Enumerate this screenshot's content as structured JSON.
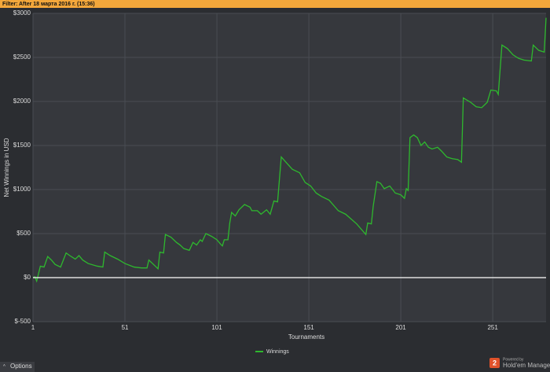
{
  "toolbar": {
    "filter_label": "Filter:",
    "filter_value": "After 18 марта 2016 г. (15:36)"
  },
  "footer": {
    "options": "Options",
    "logo_mark": "2",
    "powered_by": "Powered by",
    "brand": "Hold'em Manager"
  },
  "chart_data": {
    "type": "line",
    "xlabel": "Tournaments",
    "ylabel": "Net Winnings in USD",
    "x": [
      1,
      2,
      3,
      5,
      7,
      9,
      11,
      13,
      16,
      19,
      21,
      24,
      26,
      28,
      31,
      36,
      39,
      40,
      43,
      47,
      51,
      56,
      60,
      63,
      64,
      66,
      69,
      70,
      72,
      73,
      76,
      79,
      81,
      83,
      86,
      88,
      90,
      92,
      93,
      95,
      98,
      101,
      103,
      104,
      105,
      107,
      108,
      109,
      111,
      113,
      116,
      119,
      120,
      123,
      125,
      128,
      130,
      132,
      134,
      136,
      139,
      142,
      146,
      149,
      152,
      155,
      158,
      162,
      167,
      171,
      177,
      182,
      183,
      185,
      186,
      188,
      190,
      192,
      195,
      198,
      201,
      203,
      204,
      205,
      206,
      208,
      210,
      212,
      214,
      216,
      218,
      221,
      223,
      226,
      229,
      232,
      234,
      235,
      239,
      242,
      245,
      248,
      250,
      253,
      254,
      256,
      259,
      262,
      265,
      268,
      272,
      273,
      276,
      279,
      280
    ],
    "series": [
      {
        "name": "Winnings",
        "color": "#2eb82e",
        "values": [
          0,
          10,
          -40,
          130,
          120,
          240,
          200,
          150,
          120,
          280,
          250,
          210,
          250,
          200,
          160,
          130,
          120,
          290,
          250,
          210,
          160,
          120,
          110,
          110,
          200,
          160,
          100,
          290,
          280,
          490,
          460,
          400,
          370,
          330,
          310,
          400,
          370,
          430,
          410,
          500,
          470,
          430,
          380,
          360,
          430,
          430,
          620,
          740,
          700,
          770,
          830,
          800,
          760,
          760,
          720,
          770,
          720,
          870,
          860,
          1370,
          1300,
          1230,
          1190,
          1080,
          1040,
          960,
          920,
          880,
          760,
          720,
          610,
          490,
          620,
          610,
          810,
          1090,
          1070,
          1010,
          1040,
          960,
          940,
          900,
          1010,
          990,
          1590,
          1620,
          1590,
          1500,
          1540,
          1480,
          1460,
          1480,
          1440,
          1370,
          1350,
          1340,
          1310,
          2040,
          1990,
          1940,
          1930,
          1990,
          2130,
          2120,
          2080,
          2640,
          2600,
          2530,
          2490,
          2470,
          2460,
          2640,
          2580,
          2560,
          2950
        ]
      }
    ],
    "xlim": [
      1,
      280
    ],
    "xticks": [
      1,
      51,
      101,
      151,
      201,
      251
    ],
    "ylim": [
      -500,
      3000
    ],
    "yticks": [
      {
        "value": -500,
        "label": "$-500"
      },
      {
        "value": 0,
        "label": "$0"
      },
      {
        "value": 500,
        "label": "$500"
      },
      {
        "value": 1000,
        "label": "$1000"
      },
      {
        "value": 1500,
        "label": "$1500"
      },
      {
        "value": 2000,
        "label": "$2000"
      },
      {
        "value": 2500,
        "label": "$2500"
      },
      {
        "value": 3000,
        "label": "$3000"
      }
    ],
    "grid": true,
    "zero_line": true
  }
}
